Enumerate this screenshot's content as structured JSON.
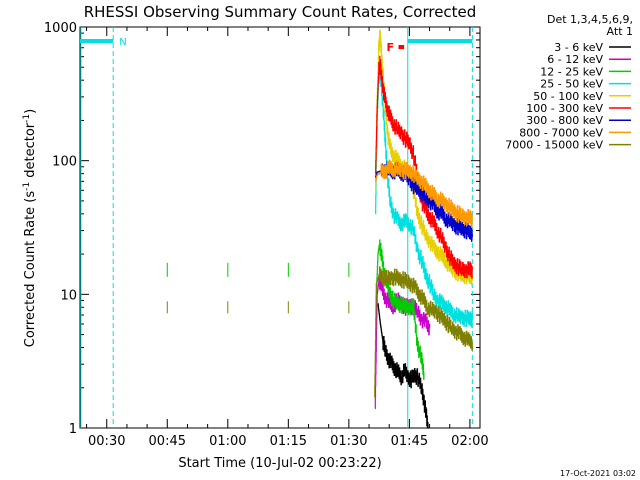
{
  "chart_data": {
    "type": "line",
    "title": "RHESSI Observing Summary Count Rates, Corrected",
    "ylabel_prefix": "Corrected Count Rate (s",
    "ylabel_sup": "-1",
    "ylabel_mid": " detector",
    "ylabel_sup2": "-1",
    "ylabel_suffix": ")",
    "xlabel": "Start Time (10-Jul-02 00:23:22)",
    "timestamp": "17-Oct-2021 03:02",
    "yscale": "log",
    "ylim": [
      1,
      1000
    ],
    "xlim_minutes": [
      23.37,
      122.5
    ],
    "x_ticks": [
      {
        "label": "00:30",
        "minute": 30
      },
      {
        "label": "00:45",
        "minute": 45
      },
      {
        "label": "01:00",
        "minute": 60
      },
      {
        "label": "01:15",
        "minute": 75
      },
      {
        "label": "01:30",
        "minute": 90
      },
      {
        "label": "01:45",
        "minute": 105
      },
      {
        "label": "02:00",
        "minute": 120
      }
    ],
    "y_ticks": [
      {
        "label": "1",
        "value": 1
      },
      {
        "label": "10",
        "value": 10
      },
      {
        "label": "100",
        "value": 100
      },
      {
        "label": "1000",
        "value": 1000
      }
    ],
    "legend": {
      "header": [
        "Det 1,3,4,5,6,9,",
        "Att 1"
      ],
      "placement": "right"
    },
    "series": [
      {
        "name": "3 - 6 keV",
        "color": "#000000",
        "points": [
          [
            97.2,
            8.5
          ],
          [
            97.8,
            6
          ],
          [
            98.4,
            4.5
          ],
          [
            99,
            3.8
          ],
          [
            99.8,
            3.3
          ],
          [
            100.6,
            3
          ],
          [
            101.4,
            2.8
          ],
          [
            102.2,
            2.6
          ],
          [
            103,
            2.4
          ],
          [
            103.8,
            2.7
          ],
          [
            104.6,
            2.4
          ],
          [
            105.4,
            2.3
          ],
          [
            106.2,
            2.5
          ],
          [
            107,
            2.4
          ],
          [
            108,
            2.0
          ],
          [
            108.6,
            1.6
          ],
          [
            109.2,
            1.2
          ],
          [
            109.8,
            0.9
          ]
        ]
      },
      {
        "name": "6 - 12 keV",
        "color": "#cc00cc",
        "points": [
          [
            96.5,
            1.4
          ],
          [
            97.0,
            10
          ],
          [
            97.5,
            13
          ],
          [
            98.2,
            11
          ],
          [
            99,
            9.5
          ],
          [
            100,
            8.5
          ],
          [
            101,
            8.2
          ],
          [
            102,
            9
          ],
          [
            103,
            8.5
          ],
          [
            104,
            8.0
          ],
          [
            105,
            8.2
          ],
          [
            106,
            8
          ],
          [
            107,
            7.5
          ],
          [
            108,
            6.5
          ],
          [
            109,
            6.2
          ],
          [
            110,
            5.6
          ]
        ]
      },
      {
        "name": "12 - 25 keV",
        "color": "#00cc00",
        "points": [
          [
            96.8,
            10
          ],
          [
            97.2,
            20
          ],
          [
            97.6,
            24
          ],
          [
            98.1,
            19
          ],
          [
            98.7,
            15
          ],
          [
            99.4,
            12
          ],
          [
            100.2,
            10
          ],
          [
            101,
            9
          ],
          [
            102,
            8.6
          ],
          [
            103,
            8.3
          ],
          [
            104,
            8.2
          ],
          [
            105,
            8.1
          ],
          [
            106,
            8.0
          ],
          [
            107,
            4.2
          ],
          [
            108,
            3.2
          ],
          [
            108.6,
            2.6
          ]
        ]
      },
      {
        "name": "25 - 50 keV",
        "color": "#00e0e0",
        "points": [
          [
            96.6,
            40
          ],
          [
            97.0,
            200
          ],
          [
            97.4,
            420
          ],
          [
            97.7,
            460
          ],
          [
            98.0,
            380
          ],
          [
            98.5,
            240
          ],
          [
            99.0,
            140
          ],
          [
            99.6,
            75
          ],
          [
            100.2,
            50
          ],
          [
            101,
            40
          ],
          [
            102,
            36
          ],
          [
            103,
            34
          ],
          [
            104,
            35
          ],
          [
            105,
            34
          ],
          [
            106,
            30
          ],
          [
            107,
            21
          ],
          [
            108,
            18
          ],
          [
            109,
            14
          ],
          [
            110,
            12
          ],
          [
            111,
            10
          ],
          [
            112,
            9
          ],
          [
            113,
            8.5
          ],
          [
            114,
            8.2
          ],
          [
            115,
            7.5
          ],
          [
            116,
            7.2
          ],
          [
            117,
            6.8
          ],
          [
            118,
            6.7
          ],
          [
            119,
            6.6
          ],
          [
            120,
            6.6
          ],
          [
            120.6,
            6.5
          ]
        ]
      },
      {
        "name": "50 - 100 keV",
        "color": "#e6d000",
        "points": [
          [
            96.6,
            60
          ],
          [
            97.0,
            300
          ],
          [
            97.4,
            700
          ],
          [
            97.7,
            860
          ],
          [
            98.0,
            700
          ],
          [
            98.5,
            400
          ],
          [
            99.0,
            250
          ],
          [
            99.6,
            160
          ],
          [
            100.2,
            125
          ],
          [
            101,
            110
          ],
          [
            102,
            100
          ],
          [
            103,
            92
          ],
          [
            104,
            86
          ],
          [
            105,
            80
          ],
          [
            106,
            60
          ],
          [
            107,
            40
          ],
          [
            108,
            33
          ],
          [
            109,
            28
          ],
          [
            110,
            25
          ],
          [
            111,
            22
          ],
          [
            112,
            21
          ],
          [
            113,
            19
          ],
          [
            114,
            18
          ],
          [
            115,
            16
          ],
          [
            116,
            15
          ],
          [
            117,
            14.5
          ],
          [
            118,
            14
          ],
          [
            119,
            13.8
          ],
          [
            120,
            13.5
          ],
          [
            120.6,
            13.5
          ]
        ]
      },
      {
        "name": "100 - 300 keV",
        "color": "#ff0000",
        "points": [
          [
            96.6,
            80
          ],
          [
            97.0,
            250
          ],
          [
            97.4,
            480
          ],
          [
            97.7,
            530
          ],
          [
            98.0,
            450
          ],
          [
            98.5,
            340
          ],
          [
            99.0,
            280
          ],
          [
            99.6,
            240
          ],
          [
            100.2,
            210
          ],
          [
            101,
            190
          ],
          [
            102,
            170
          ],
          [
            103,
            160
          ],
          [
            104,
            145
          ],
          [
            105,
            135
          ],
          [
            106,
            110
          ],
          [
            107,
            75
          ],
          [
            108,
            50
          ],
          [
            109,
            42
          ],
          [
            110,
            38
          ],
          [
            111,
            34
          ],
          [
            112,
            30
          ],
          [
            113,
            26
          ],
          [
            114,
            22
          ],
          [
            115,
            19
          ],
          [
            116,
            17
          ],
          [
            117,
            16
          ],
          [
            118,
            15.5
          ],
          [
            119,
            15.3
          ],
          [
            120,
            15.2
          ],
          [
            120.6,
            15.2
          ]
        ]
      },
      {
        "name": "300 - 800 keV",
        "color": "#0000cc",
        "points": [
          [
            96.6,
            75
          ],
          [
            97,
            82
          ],
          [
            98,
            84
          ],
          [
            99,
            86
          ],
          [
            100,
            85
          ],
          [
            101,
            84
          ],
          [
            102,
            84
          ],
          [
            103,
            82
          ],
          [
            104,
            78
          ],
          [
            105,
            72
          ],
          [
            106,
            65
          ],
          [
            107,
            62
          ],
          [
            108,
            58
          ],
          [
            109,
            53
          ],
          [
            110,
            50
          ],
          [
            111,
            46
          ],
          [
            112,
            42
          ],
          [
            113,
            40
          ],
          [
            114,
            37
          ],
          [
            115,
            35
          ],
          [
            116,
            33
          ],
          [
            117,
            32
          ],
          [
            118,
            31
          ],
          [
            119,
            30
          ],
          [
            120,
            29
          ],
          [
            120.6,
            28.5
          ]
        ]
      },
      {
        "name": "800 - 7000 keV",
        "color": "#ff9900",
        "points": [
          [
            96.6,
            70
          ],
          [
            97,
            78
          ],
          [
            98,
            82
          ],
          [
            99,
            85
          ],
          [
            100,
            88
          ],
          [
            101,
            87
          ],
          [
            102,
            86
          ],
          [
            103,
            85
          ],
          [
            104,
            84
          ],
          [
            105,
            83
          ],
          [
            106,
            80
          ],
          [
            107,
            74
          ],
          [
            108,
            70
          ],
          [
            109,
            64
          ],
          [
            110,
            60
          ],
          [
            111,
            55
          ],
          [
            112,
            52
          ],
          [
            113,
            50
          ],
          [
            114,
            47
          ],
          [
            115,
            45
          ],
          [
            116,
            42
          ],
          [
            117,
            40
          ],
          [
            118,
            39
          ],
          [
            119,
            38
          ],
          [
            120,
            37
          ],
          [
            120.6,
            37
          ]
        ]
      },
      {
        "name": "7000 - 15000 keV",
        "color": "#808000",
        "points": [
          [
            96.4,
            1.7
          ],
          [
            96.8,
            12
          ],
          [
            97.5,
            14
          ],
          [
            98.5,
            13.5
          ],
          [
            99.5,
            13
          ],
          [
            100.5,
            13.2
          ],
          [
            101.5,
            13.5
          ],
          [
            102.5,
            13
          ],
          [
            103.5,
            12.8
          ],
          [
            104.5,
            12.5
          ],
          [
            105.5,
            12
          ],
          [
            106.5,
            11
          ],
          [
            107.5,
            10
          ],
          [
            108.5,
            9
          ],
          [
            109.5,
            8
          ],
          [
            110.5,
            7.6
          ],
          [
            111.5,
            7.4
          ],
          [
            112.5,
            7.0
          ],
          [
            113.5,
            6.5
          ],
          [
            114.5,
            6.0
          ],
          [
            115.5,
            5.6
          ],
          [
            116.5,
            5.3
          ],
          [
            117.5,
            5.0
          ],
          [
            118.5,
            4.8
          ],
          [
            119.5,
            4.5
          ],
          [
            120.6,
            4.4
          ]
        ]
      }
    ],
    "gaps": [
      {
        "minute": 45.0,
        "values": [
          15,
          8
        ]
      },
      {
        "minute": 60.0,
        "values": [
          15,
          8
        ]
      },
      {
        "minute": 75.0,
        "values": [
          15,
          8
        ]
      },
      {
        "minute": 90.0,
        "values": [
          15,
          8
        ]
      }
    ],
    "annotations": {
      "night_label": "N",
      "flare_label": "F",
      "night_spans": [
        [
          23.37,
          31.6
        ]
      ],
      "flare_span": [
        102.3,
        103.7
      ],
      "saa_span": [
        104.6,
        120.6
      ],
      "vlines_solid": [
        23.6,
        104.6
      ],
      "vlines_dashed": [
        31.6,
        120.6
      ],
      "annotation_colors": {
        "night": "#00e0e0",
        "flare": "#ff0000"
      }
    }
  }
}
